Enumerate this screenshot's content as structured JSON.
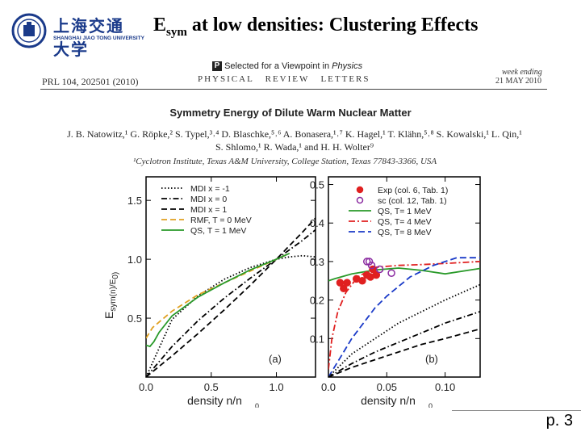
{
  "slide": {
    "title_main": "E",
    "title_sub": "sym",
    "title_rest": " at low densities: Clustering Effects",
    "page_number": "p. 3",
    "logo_line1": "上海交通大学",
    "logo_line2": "SHANGHAI JIAO TONG UNIVERSITY"
  },
  "paper": {
    "journal_ref": "PRL 104, 202501 (2010)",
    "journal_name": "PHYSICAL   REVIEW   LETTERS",
    "viewpoint": "Selected for a Viewpoint in ",
    "viewpoint_journal": "Physics",
    "week_label": "week ending",
    "week_date": "21 MAY 2010",
    "title": "Symmetry Energy of Dilute Warm Nuclear Matter",
    "authors_line1": "J. B. Natowitz,¹ G. Röpke,² S. Typel,³˒⁴ D. Blaschke,⁵˒⁶ A. Bonasera,¹˒⁷ K. Hagel,¹ T. Klähn,⁵˒⁸ S. Kowalski,¹ L. Qin,¹",
    "authors_line2": "S. Shlomo,¹ R. Wada,¹ and H. H. Wolter⁹",
    "affiliation": "¹Cyclotron Institute, Texas A&M University, College Station, Texas 77843-3366, USA"
  },
  "chart_data": [
    {
      "type": "line",
      "panel_label": "(a)",
      "xlabel": "density  n/n",
      "xlabel_sub": "0",
      "ylabel": "E",
      "ylabel_rest": "sym(n)/E",
      "ylabel_end": "sym(n",
      "ylabel_sub0": "0",
      "xlim": [
        0,
        1.3
      ],
      "ylim": [
        0,
        1.7
      ],
      "xticks": [
        0.0,
        0.5,
        1.0
      ],
      "yticks": [
        0.5,
        1.0,
        1.5
      ],
      "xtick_labels": [
        "0.0",
        "0.5",
        "1.0"
      ],
      "ytick_labels": [
        "0.5",
        "1.0",
        "1.5"
      ],
      "legend": [
        "MDI x = -1",
        "MDI x = 0",
        "MDI x = 1",
        "RMF, T = 0 MeV",
        "QS, T = 1 MeV"
      ],
      "series": [
        {
          "name": "MDI x = -1",
          "color": "#000000",
          "dash": "1.5,2.5",
          "x": [
            0.0,
            0.2,
            0.4,
            0.6,
            0.8,
            1.0,
            1.1,
            1.2,
            1.3
          ],
          "y": [
            0.0,
            0.49,
            0.69,
            0.83,
            0.93,
            1.0,
            1.02,
            1.03,
            1.02
          ]
        },
        {
          "name": "MDI x = 0",
          "color": "#000000",
          "dash": "7,3,1.5,3",
          "x": [
            0.0,
            0.2,
            0.4,
            0.6,
            0.8,
            1.0,
            1.2,
            1.3
          ],
          "y": [
            0.0,
            0.26,
            0.48,
            0.67,
            0.84,
            1.0,
            1.16,
            1.25
          ]
        },
        {
          "name": "MDI x = 1",
          "color": "#000000",
          "dash": "7,4",
          "x": [
            0.0,
            0.2,
            0.4,
            0.6,
            0.8,
            1.0,
            1.2,
            1.3
          ],
          "y": [
            0.0,
            0.18,
            0.37,
            0.57,
            0.78,
            1.0,
            1.23,
            1.35
          ]
        },
        {
          "name": "RMF, T = 0 MeV",
          "color": "#e0a020",
          "dash": "7,4",
          "x": [
            0.0,
            0.05,
            0.2,
            0.4,
            0.6,
            0.8,
            1.0,
            1.1
          ],
          "y": [
            0.33,
            0.42,
            0.56,
            0.7,
            0.8,
            0.9,
            1.0,
            1.05
          ]
        },
        {
          "name": "QS, T = 1 MeV",
          "color": "#2a9a2a",
          "dash": "",
          "x": [
            0.0,
            0.03,
            0.06,
            0.1,
            0.2,
            0.4,
            0.6,
            0.8,
            1.0,
            1.1
          ],
          "y": [
            0.27,
            0.26,
            0.3,
            0.38,
            0.52,
            0.68,
            0.8,
            0.91,
            1.0,
            1.05
          ]
        }
      ]
    },
    {
      "type": "line",
      "panel_label": "(b)",
      "xlabel": "density  n/n",
      "xlabel_sub": "0",
      "xlim": [
        0,
        0.13
      ],
      "ylim": [
        0,
        0.52
      ],
      "xticks": [
        0.0,
        0.05,
        0.1
      ],
      "yticks": [
        0.1,
        0.2,
        0.3,
        0.4,
        0.5
      ],
      "xtick_labels": [
        "0.0",
        "0.05",
        "0.10"
      ],
      "ytick_labels": [
        "0.1",
        "0.2",
        "0.3",
        "0.4",
        "0.5"
      ],
      "legend": [
        "Exp (col. 6, Tab. 1)",
        "sc (col. 12, Tab. 1)",
        "QS, T= 1 MeV",
        "QS, T= 4 MeV",
        "QS, T= 8 MeV"
      ],
      "series": [
        {
          "name": "QS, T= 1 MeV",
          "color": "#2a9a2a",
          "dash": "",
          "x": [
            0.0,
            0.005,
            0.02,
            0.04,
            0.06,
            0.08,
            0.1,
            0.13
          ],
          "y": [
            0.25,
            0.255,
            0.268,
            0.278,
            0.283,
            0.277,
            0.268,
            0.282
          ]
        },
        {
          "name": "QS, T= 4 MeV",
          "color": "#e02020",
          "dash": "8,3,2,3",
          "x": [
            0.0,
            0.003,
            0.008,
            0.015,
            0.025,
            0.04,
            0.06,
            0.08,
            0.1,
            0.13
          ],
          "y": [
            0.02,
            0.1,
            0.17,
            0.22,
            0.26,
            0.285,
            0.29,
            0.292,
            0.295,
            0.3
          ]
        },
        {
          "name": "QS, T= 8 MeV",
          "color": "#1a3ac8",
          "dash": "8,4",
          "x": [
            0.0,
            0.01,
            0.02,
            0.03,
            0.04,
            0.05,
            0.07,
            0.09,
            0.11,
            0.13
          ],
          "y": [
            0.0,
            0.05,
            0.1,
            0.14,
            0.18,
            0.21,
            0.26,
            0.29,
            0.31,
            0.31
          ]
        },
        {
          "name": "MDI x = -1",
          "color": "#000000",
          "dash": "1.5,2.5",
          "x": [
            0.0,
            0.02,
            0.04,
            0.06,
            0.08,
            0.1,
            0.13
          ],
          "y": [
            0.0,
            0.06,
            0.1,
            0.14,
            0.17,
            0.2,
            0.24
          ]
        },
        {
          "name": "MDI x = 0",
          "color": "#000000",
          "dash": "7,3,1.5,3",
          "x": [
            0.0,
            0.02,
            0.04,
            0.06,
            0.08,
            0.1,
            0.13
          ],
          "y": [
            0.0,
            0.035,
            0.065,
            0.09,
            0.115,
            0.14,
            0.17
          ]
        },
        {
          "name": "MDI x = 1",
          "color": "#000000",
          "dash": "7,4",
          "x": [
            0.0,
            0.02,
            0.04,
            0.06,
            0.08,
            0.1,
            0.13
          ],
          "y": [
            0.0,
            0.025,
            0.045,
            0.065,
            0.085,
            0.1,
            0.125
          ]
        }
      ],
      "points": [
        {
          "name": "Exp (col. 6, Tab. 1)",
          "color": "#e02020",
          "filled": true,
          "x": [
            0.01,
            0.013,
            0.016,
            0.024,
            0.029,
            0.033,
            0.036,
            0.038,
            0.041
          ],
          "y": [
            0.245,
            0.23,
            0.245,
            0.255,
            0.25,
            0.265,
            0.26,
            0.28,
            0.265
          ]
        },
        {
          "name": "sc (col. 12, Tab. 1)",
          "color": "#8a2aa0",
          "filled": false,
          "x": [
            0.033,
            0.035,
            0.037,
            0.044,
            0.054
          ],
          "y": [
            0.3,
            0.3,
            0.29,
            0.28,
            0.27
          ]
        }
      ]
    }
  ]
}
